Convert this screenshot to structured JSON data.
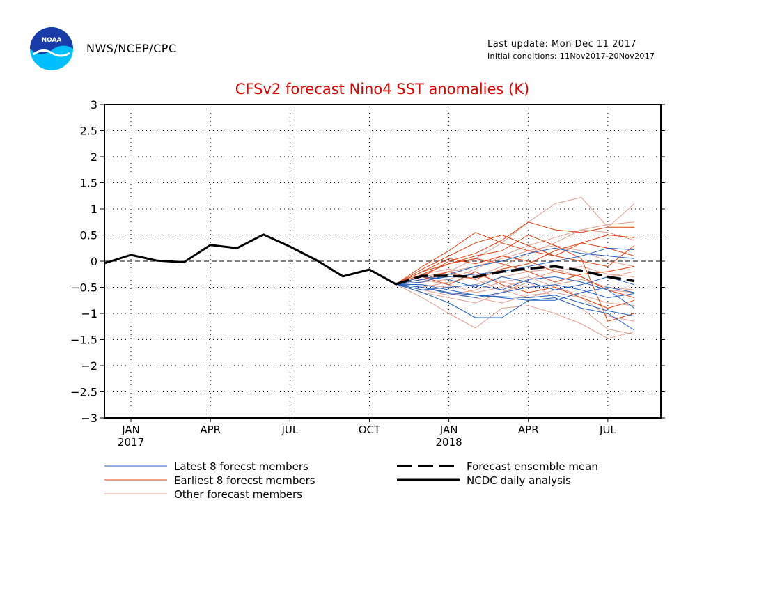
{
  "header": {
    "agency": "NWS/NCEP/CPC",
    "last_update": "Last update: Mon Dec 11 2017",
    "initial_conditions": "Initial conditions: 11Nov2017-20Nov2017",
    "logo_text": "NOAA"
  },
  "colors": {
    "title": "#e00000",
    "latest": "#2060c0",
    "earliest": "#e04010",
    "other": "#e0a090",
    "mean": "#000000",
    "observed": "#000000"
  },
  "legend": {
    "latest": "Latest 8 forecst members",
    "earliest": "Earliest 8 forecst members",
    "other": "Other forecast members",
    "mean": "Forecast ensemble mean",
    "observed": "NCDC daily analysis"
  },
  "chart_data": {
    "type": "line",
    "title": "CFSv2 forecast Nino4 SST anomalies (K)",
    "xlabel": "",
    "ylabel": "",
    "x_unit": "month index (0 = Jan 2017)",
    "xlim": [
      -1,
      20
    ],
    "ylim": [
      -3,
      3
    ],
    "grid": true,
    "legend_position": "bottom",
    "y_ticks": [
      "3",
      "2.5",
      "2",
      "1.5",
      "1",
      "0.5",
      "0",
      "-0.5",
      "-1",
      "-1.5",
      "-2",
      "-2.5",
      "-3"
    ],
    "x_ticks": [
      {
        "x": 0,
        "label": "JAN",
        "year": "2017"
      },
      {
        "x": 3,
        "label": "APR",
        "year": ""
      },
      {
        "x": 6,
        "label": "JUL",
        "year": ""
      },
      {
        "x": 9,
        "label": "OCT",
        "year": ""
      },
      {
        "x": 12,
        "label": "JAN",
        "year": "2018"
      },
      {
        "x": 15,
        "label": "APR",
        "year": ""
      },
      {
        "x": 18,
        "label": "JUL",
        "year": ""
      }
    ],
    "observed": {
      "name": "NCDC daily analysis",
      "points": [
        [
          -1,
          -0.04
        ],
        [
          0,
          0.12
        ],
        [
          1,
          0.01
        ],
        [
          2,
          -0.02
        ],
        [
          3,
          0.31
        ],
        [
          4,
          0.25
        ],
        [
          5,
          0.51
        ],
        [
          6,
          0.28
        ],
        [
          7,
          0.02
        ],
        [
          8,
          -0.29
        ],
        [
          9,
          -0.16
        ],
        [
          10,
          -0.44
        ]
      ]
    },
    "ensemble_mean": {
      "name": "Forecast ensemble mean",
      "points": [
        [
          10,
          -0.44
        ],
        [
          11,
          -0.28
        ],
        [
          12,
          -0.28
        ],
        [
          13,
          -0.3
        ],
        [
          14,
          -0.2
        ],
        [
          15,
          -0.14
        ],
        [
          16,
          -0.1
        ],
        [
          17,
          -0.18
        ],
        [
          18,
          -0.3
        ],
        [
          19,
          -0.38
        ]
      ]
    },
    "members_x": [
      10,
      11,
      12,
      13,
      14,
      15,
      16,
      17,
      18,
      19
    ],
    "latest_members": {
      "name": "Latest 8 forecst members",
      "series": [
        [
          -0.44,
          -0.6,
          -0.8,
          -1.08,
          -1.08,
          -0.75,
          -0.7,
          -0.9,
          -1.0,
          -1.32
        ],
        [
          -0.44,
          -0.5,
          -0.62,
          -0.7,
          -0.6,
          -0.5,
          -0.45,
          -0.55,
          -0.7,
          -0.62
        ],
        [
          -0.44,
          -0.35,
          -0.3,
          -0.25,
          -0.2,
          -0.1,
          0.0,
          0.1,
          0.25,
          0.22
        ],
        [
          -0.44,
          -0.55,
          -0.5,
          -0.45,
          -0.55,
          -0.35,
          -0.3,
          -0.4,
          -0.55,
          -0.9
        ],
        [
          -0.44,
          -0.4,
          -0.25,
          -0.1,
          0.0,
          0.15,
          0.25,
          0.15,
          0.1,
          0.05
        ],
        [
          -0.44,
          -0.45,
          -0.55,
          -0.65,
          -0.7,
          -0.75,
          -0.75,
          -0.6,
          -0.5,
          -0.6
        ],
        [
          -0.44,
          -0.3,
          -0.35,
          -0.5,
          -0.3,
          -0.4,
          -0.55,
          -0.45,
          -0.3,
          -0.45
        ],
        [
          -0.44,
          -0.5,
          -0.6,
          -0.65,
          -0.68,
          -0.7,
          -0.65,
          -0.8,
          -0.95,
          -1.05
        ]
      ]
    },
    "earliest_members": {
      "name": "Earliest 8 forecst members",
      "series": [
        [
          -0.44,
          -0.1,
          0.2,
          0.55,
          0.35,
          0.2,
          0.1,
          0.35,
          0.5,
          0.45
        ],
        [
          -0.44,
          -0.3,
          0.0,
          0.15,
          0.4,
          0.75,
          0.6,
          0.55,
          0.65,
          0.65
        ],
        [
          -0.44,
          -0.25,
          -0.05,
          0.1,
          0.2,
          0.5,
          0.3,
          0.05,
          -1.15,
          -1.0
        ],
        [
          -0.44,
          -0.2,
          0.05,
          -0.05,
          0.1,
          0.0,
          -0.2,
          -0.3,
          -0.55,
          -0.7
        ],
        [
          -0.44,
          -0.35,
          -0.2,
          -0.35,
          -0.15,
          -0.05,
          0.2,
          0.35,
          0.25,
          0.1
        ],
        [
          -0.44,
          -0.15,
          0.1,
          0.35,
          0.5,
          0.3,
          0.1,
          0.0,
          -0.1,
          0.3
        ],
        [
          -0.44,
          -0.3,
          -0.45,
          -0.2,
          -0.45,
          -0.6,
          -0.5,
          -0.7,
          -0.9,
          -0.75
        ],
        [
          -0.44,
          -0.2,
          -0.05,
          0.05,
          -0.05,
          -0.2,
          -0.4,
          -0.25,
          -0.2,
          -0.1
        ]
      ]
    },
    "other_members": {
      "name": "Other forecast members",
      "series": [
        [
          -0.44,
          -0.4,
          -0.2,
          0.05,
          0.35,
          0.75,
          1.1,
          1.22,
          0.65,
          1.1
        ],
        [
          -0.44,
          -0.7,
          -1.0,
          -1.28,
          -0.9,
          -0.85,
          -1.0,
          -1.2,
          -1.48,
          -1.35
        ],
        [
          -0.44,
          -0.5,
          -0.4,
          -0.3,
          -0.1,
          0.15,
          0.35,
          0.6,
          0.7,
          0.75
        ],
        [
          -0.44,
          -0.6,
          -0.7,
          -0.8,
          -0.6,
          -0.4,
          -0.7,
          -0.9,
          -1.3,
          -1.4
        ],
        [
          -0.44,
          -0.35,
          -0.25,
          -0.35,
          -0.55,
          -0.7,
          -0.55,
          -0.45,
          -0.3,
          -0.2
        ],
        [
          -0.44,
          -0.45,
          -0.5,
          -0.45,
          -0.3,
          -0.2,
          -0.15,
          -0.3,
          -0.55,
          -0.6
        ],
        [
          -0.44,
          -0.3,
          -0.2,
          -0.1,
          0.05,
          0.2,
          0.3,
          0.2,
          0.0,
          -0.1
        ],
        [
          -0.44,
          -0.55,
          -0.65,
          -0.55,
          -0.4,
          -0.3,
          -0.5,
          -0.65,
          -0.8,
          -0.85
        ],
        [
          -0.44,
          -0.25,
          -0.15,
          -0.25,
          -0.4,
          -0.5,
          -0.45,
          -0.35,
          -0.5,
          -0.55
        ],
        [
          -0.44,
          -0.4,
          -0.35,
          -0.15,
          0.1,
          0.3,
          0.45,
          0.6,
          0.55,
          0.4
        ],
        [
          -0.44,
          -0.5,
          -0.6,
          -0.7,
          -0.8,
          -0.65,
          -0.6,
          -0.7,
          -1.05,
          -1.15
        ],
        [
          -0.44,
          -0.35,
          -0.45,
          -0.6,
          -0.5,
          -0.35,
          -0.2,
          -0.1,
          -0.25,
          -0.3
        ]
      ]
    }
  }
}
